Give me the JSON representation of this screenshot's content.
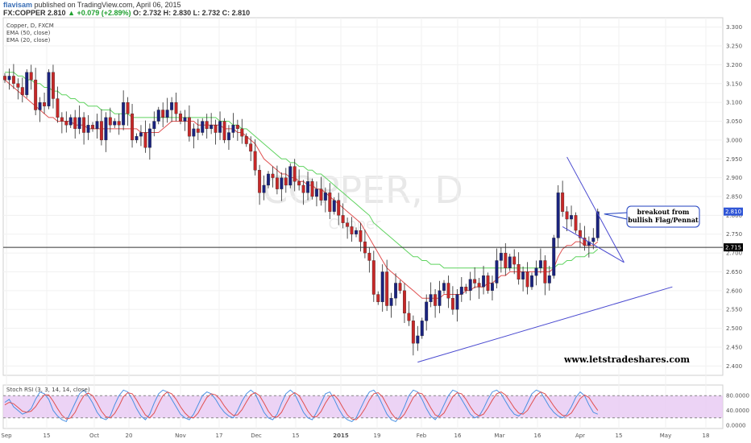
{
  "header": {
    "author": "flavisam",
    "published": "published on TradingView.com, April 06, 2015",
    "symbol": "FX:COPPER",
    "price": "2.810",
    "change": "▲ +0.079 (+2.89%)",
    "ohlc": "O: 2.732  H: 2.830  L: 2.732  C: 2.810"
  },
  "chart_data": {
    "type": "candlestick",
    "legend": [
      "Copper, D, FXCM",
      "EMA (50, close)",
      "EMA (20, close)"
    ],
    "watermark": "COPPER, D",
    "watermark_sub": "Copper",
    "x_ticks": [
      "Sep",
      "15",
      "Oct",
      "20",
      "Nov",
      "17",
      "Dec",
      "15",
      "2015",
      "19",
      "Feb",
      "16",
      "Mar",
      "16",
      "Apr",
      "15",
      "May",
      "18"
    ],
    "y_ticks": [
      "3.300",
      "3.250",
      "3.200",
      "3.150",
      "3.100",
      "3.050",
      "3.000",
      "2.950",
      "2.900",
      "2.850",
      "2.800",
      "2.750",
      "2.700",
      "2.650",
      "2.600",
      "2.550",
      "2.500",
      "2.450",
      "2.400"
    ],
    "ylim": [
      2.375,
      3.325
    ],
    "current_price": {
      "label": "2.810",
      "value": 2.81
    },
    "horizontal_level": {
      "label": "2.715",
      "value": 2.715
    },
    "closes": [
      3.16,
      3.17,
      3.15,
      3.14,
      3.12,
      3.18,
      3.16,
      3.08,
      3.1,
      3.09,
      3.18,
      3.11,
      3.06,
      3.05,
      3.04,
      3.06,
      3.03,
      3.06,
      3.02,
      3.04,
      3.03,
      3.05,
      3.0,
      3.06,
      3.04,
      3.05,
      3.04,
      3.1,
      3.07,
      3.0,
      3.01,
      3.02,
      2.98,
      3.03,
      3.05,
      3.08,
      3.06,
      3.08,
      3.1,
      3.07,
      3.05,
      3.06,
      3.01,
      3.03,
      3.02,
      3.05,
      3.03,
      3.04,
      3.02,
      3.05,
      3.0,
      3.02,
      3.04,
      3.03,
      3.01,
      2.99,
      2.97,
      2.92,
      2.86,
      2.88,
      2.91,
      2.9,
      2.87,
      2.9,
      2.88,
      2.93,
      2.89,
      2.88,
      2.86,
      2.89,
      2.85,
      2.87,
      2.84,
      2.86,
      2.81,
      2.84,
      2.8,
      2.78,
      2.77,
      2.75,
      2.76,
      2.73,
      2.7,
      2.68,
      2.59,
      2.57,
      2.65,
      2.56,
      2.58,
      2.62,
      2.6,
      2.54,
      2.52,
      2.46,
      2.48,
      2.52,
      2.57,
      2.59,
      2.56,
      2.6,
      2.62,
      2.58,
      2.55,
      2.59,
      2.61,
      2.6,
      2.63,
      2.62,
      2.61,
      2.64,
      2.6,
      2.62,
      2.68,
      2.7,
      2.66,
      2.69,
      2.67,
      2.63,
      2.65,
      2.61,
      2.64,
      2.66,
      2.68,
      2.62,
      2.64,
      2.74,
      2.86,
      2.81,
      2.79,
      2.8,
      2.76,
      2.74,
      2.72,
      2.73,
      2.74,
      2.81
    ],
    "ema20": [
      3.16,
      3.15,
      3.14,
      3.13,
      3.12,
      3.11,
      3.1,
      3.09,
      3.08,
      3.07,
      3.06,
      3.06,
      3.05,
      3.05,
      3.05,
      3.05,
      3.04,
      3.04,
      3.04,
      3.03,
      3.03,
      3.03,
      3.03,
      3.03,
      3.03,
      3.03,
      3.03,
      3.03,
      3.03,
      3.03,
      3.03,
      3.02,
      3.02,
      3.02,
      3.02,
      3.02,
      3.03,
      3.04,
      3.05,
      3.05,
      3.05,
      3.05,
      3.05,
      3.05,
      3.04,
      3.04,
      3.04,
      3.04,
      3.04,
      3.04,
      3.03,
      3.03,
      3.03,
      3.02,
      3.02,
      3.01,
      3.0,
      2.99,
      2.97,
      2.95,
      2.94,
      2.93,
      2.92,
      2.91,
      2.91,
      2.9,
      2.9,
      2.89,
      2.89,
      2.88,
      2.88,
      2.87,
      2.87,
      2.86,
      2.85,
      2.84,
      2.83,
      2.82,
      2.81,
      2.8,
      2.79,
      2.78,
      2.76,
      2.74,
      2.72,
      2.7,
      2.68,
      2.66,
      2.65,
      2.64,
      2.63,
      2.62,
      2.61,
      2.6,
      2.59,
      2.58,
      2.58,
      2.58,
      2.58,
      2.58,
      2.59,
      2.59,
      2.59,
      2.59,
      2.59,
      2.6,
      2.6,
      2.61,
      2.61,
      2.61,
      2.62,
      2.62,
      2.63,
      2.64,
      2.64,
      2.65,
      2.65,
      2.65,
      2.65,
      2.65,
      2.65,
      2.65,
      2.65,
      2.65,
      2.65,
      2.66,
      2.69,
      2.71,
      2.72,
      2.72,
      2.73,
      2.73,
      2.72,
      2.72,
      2.72,
      2.73
    ],
    "ema50": [
      3.18,
      3.18,
      3.18,
      3.17,
      3.17,
      3.16,
      3.16,
      3.15,
      3.15,
      3.14,
      3.14,
      3.13,
      3.13,
      3.12,
      3.12,
      3.11,
      3.11,
      3.1,
      3.1,
      3.09,
      3.09,
      3.09,
      3.08,
      3.08,
      3.08,
      3.07,
      3.07,
      3.07,
      3.07,
      3.06,
      3.06,
      3.06,
      3.06,
      3.06,
      3.06,
      3.06,
      3.06,
      3.06,
      3.06,
      3.06,
      3.06,
      3.06,
      3.06,
      3.06,
      3.06,
      3.06,
      3.06,
      3.06,
      3.06,
      3.05,
      3.05,
      3.05,
      3.04,
      3.04,
      3.03,
      3.03,
      3.02,
      3.01,
      3.0,
      2.99,
      2.98,
      2.97,
      2.96,
      2.95,
      2.95,
      2.94,
      2.94,
      2.93,
      2.93,
      2.92,
      2.92,
      2.91,
      2.91,
      2.9,
      2.89,
      2.88,
      2.87,
      2.86,
      2.85,
      2.84,
      2.83,
      2.82,
      2.81,
      2.8,
      2.78,
      2.77,
      2.76,
      2.75,
      2.74,
      2.73,
      2.72,
      2.71,
      2.7,
      2.69,
      2.69,
      2.68,
      2.68,
      2.67,
      2.67,
      2.67,
      2.66,
      2.66,
      2.66,
      2.66,
      2.66,
      2.66,
      2.66,
      2.66,
      2.66,
      2.66,
      2.66,
      2.66,
      2.66,
      2.66,
      2.66,
      2.66,
      2.66,
      2.66,
      2.66,
      2.66,
      2.66,
      2.66,
      2.66,
      2.66,
      2.66,
      2.66,
      2.67,
      2.67,
      2.68,
      2.68,
      2.69,
      2.69,
      2.69,
      2.7,
      2.7,
      2.71
    ],
    "annotation": "breakout from\nbullish Flag/Pennat",
    "website": "www.letstradeshares.com",
    "trendlines": [
      {
        "from": [
          94,
          2.41
        ],
        "to": [
          152,
          2.61
        ]
      },
      {
        "from": [
          128,
          2.955
        ],
        "to": [
          141,
          2.675
        ]
      },
      {
        "from": [
          127,
          2.77
        ],
        "to": [
          141,
          2.675
        ]
      }
    ],
    "stoch_rsi": {
      "legend": "Stoch RSI (3, 3, 14, 14, close)",
      "y_ticks": [
        "80.0000",
        "40.0000",
        "0.0000"
      ],
      "upper_band": 80,
      "lower_band": 20,
      "k": [
        62,
        70,
        50,
        40,
        30,
        35,
        45,
        70,
        90,
        85,
        70,
        40,
        25,
        15,
        10,
        35,
        60,
        85,
        95,
        80,
        60,
        35,
        20,
        15,
        25,
        55,
        80,
        95,
        90,
        70,
        45,
        25,
        15,
        30,
        60,
        85,
        95,
        90,
        70,
        50,
        30,
        20,
        15,
        30,
        55,
        80,
        90,
        85,
        70,
        50,
        35,
        25,
        20,
        40,
        65,
        85,
        95,
        85,
        60,
        35,
        20,
        15,
        30,
        60,
        85,
        95,
        85,
        60,
        35,
        20,
        15,
        35,
        60,
        85,
        90,
        70,
        45,
        25,
        15,
        10,
        20,
        45,
        70,
        90,
        95,
        80,
        55,
        30,
        15,
        10,
        25,
        50,
        80,
        95,
        90,
        70,
        45,
        25,
        15,
        30,
        55,
        80,
        95,
        90,
        70,
        50,
        30,
        20,
        25,
        45,
        70,
        90,
        95,
        85,
        65,
        45,
        30,
        25,
        35,
        60,
        85,
        95,
        90,
        70,
        50,
        35,
        25,
        20,
        30,
        50,
        75,
        90,
        80,
        55,
        35,
        30
      ],
      "d": [
        55,
        62,
        58,
        48,
        38,
        35,
        38,
        50,
        68,
        82,
        82,
        65,
        45,
        27,
        17,
        20,
        35,
        60,
        80,
        87,
        80,
        60,
        38,
        23,
        20,
        32,
        52,
        77,
        88,
        85,
        68,
        47,
        28,
        20,
        33,
        58,
        80,
        90,
        85,
        70,
        50,
        33,
        22,
        20,
        33,
        55,
        75,
        85,
        82,
        70,
        52,
        37,
        27,
        28,
        42,
        63,
        82,
        88,
        80,
        60,
        38,
        23,
        22,
        35,
        58,
        80,
        88,
        80,
        60,
        38,
        23,
        23,
        37,
        60,
        78,
        82,
        68,
        47,
        28,
        17,
        15,
        27,
        45,
        68,
        85,
        88,
        77,
        55,
        33,
        18,
        17,
        30,
        52,
        75,
        88,
        85,
        68,
        47,
        28,
        23,
        33,
        55,
        77,
        88,
        85,
        70,
        50,
        33,
        25,
        30,
        47,
        68,
        85,
        90,
        82,
        65,
        47,
        33,
        30,
        40,
        60,
        80,
        90,
        85,
        70,
        52,
        37,
        27,
        25,
        33,
        52,
        72,
        82,
        75,
        57,
        40
      ]
    }
  }
}
